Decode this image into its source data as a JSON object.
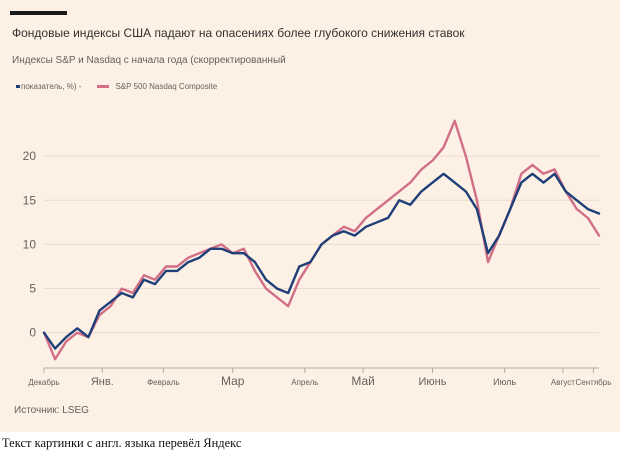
{
  "header": {
    "title": "Фондовые индексы США падают на опасениях более глубокого снижения ставок",
    "subtitle": "Индексы S&P и Nasdaq с начала года (скорректированный",
    "legend_first": "показатель, %) -",
    "legend_second": "S&P 500 Nasdaq Composite"
  },
  "source": "Источник: LSEG",
  "footer": "Текст картинки с англ. языка перевёл Яндекс",
  "colors": {
    "background": "#fdf1e5",
    "sp500": "#1f3f78",
    "nasdaq": "#d26f87",
    "grid": "#e8dcd2"
  },
  "chart_data": {
    "type": "line",
    "ylim": [
      -4,
      25
    ],
    "yticks": [
      0,
      5,
      10,
      15,
      20
    ],
    "grid": true,
    "legend_position": "top-left",
    "x": [
      0,
      2,
      4,
      6,
      8,
      10,
      12,
      14,
      16,
      18,
      20,
      22,
      24,
      26,
      28,
      30,
      32,
      34,
      36,
      38,
      40,
      42,
      44,
      46,
      48,
      50,
      52,
      54,
      56,
      58,
      60,
      62,
      64,
      66,
      68,
      70,
      72,
      74,
      76,
      78,
      80,
      82,
      84,
      86,
      88,
      90,
      92,
      94,
      96,
      98,
      100
    ],
    "xlabels": [
      {
        "pos": 0,
        "text": "Декабрь",
        "size": 8
      },
      {
        "pos": 10.5,
        "text": "Янв.",
        "size": 11
      },
      {
        "pos": 21.5,
        "text": "Февраль",
        "size": 8
      },
      {
        "pos": 34,
        "text": "Мар",
        "size": 12
      },
      {
        "pos": 47,
        "text": "Апрель",
        "size": 8
      },
      {
        "pos": 57.5,
        "text": "Май",
        "size": 12
      },
      {
        "pos": 70,
        "text": "Июнь",
        "size": 11
      },
      {
        "pos": 83,
        "text": "Июль",
        "size": 9
      },
      {
        "pos": 93.5,
        "text": "Август",
        "size": 8
      },
      {
        "pos": 99,
        "text": "Сентябрь",
        "size": 8
      }
    ],
    "series": [
      {
        "name": "S&P 500",
        "values": [
          0,
          -1.8,
          -0.5,
          0.5,
          -0.5,
          2.5,
          3.5,
          4.5,
          4,
          6,
          5.5,
          7,
          7,
          8,
          8.5,
          9.5,
          9.5,
          9,
          9,
          8,
          6,
          5,
          4.5,
          7.5,
          8,
          10,
          11,
          11.5,
          11,
          12,
          12.5,
          13,
          15,
          14.5,
          16,
          17,
          18,
          17,
          16,
          14,
          9,
          11,
          14,
          17,
          18,
          17,
          18,
          16,
          15,
          14,
          13.5
        ]
      },
      {
        "name": "Nasdaq Composite",
        "values": [
          0,
          -3,
          -1,
          0,
          -0.5,
          2,
          3,
          5,
          4.5,
          6.5,
          6,
          7.5,
          7.5,
          8.5,
          9,
          9.5,
          10,
          9,
          9.5,
          7,
          5,
          4,
          3,
          6,
          8,
          10,
          11,
          12,
          11.5,
          13,
          14,
          15,
          16,
          17,
          18.5,
          19.5,
          21,
          24,
          20,
          15,
          8,
          11,
          14,
          18,
          19,
          18,
          18.5,
          16,
          14,
          13,
          11
        ]
      }
    ]
  }
}
